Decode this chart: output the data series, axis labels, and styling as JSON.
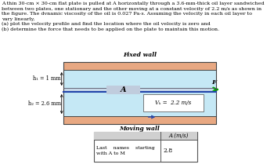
{
  "title_line1": "A thin 30-cm × 30-cm flat plate is pulled at A horizontally through a 3.6-mm-thick oil layer sandwiched",
  "title_line2": "between two plates, one stationary and the other moving at a constant velocity of 2.2 m/s as shown in",
  "title_line3": "the figure. The dvnamic viscosity of the oil is 0.027 Pa·s. Assuming the velocity in each oil layer to",
  "title_line4": "vary linearly,",
  "title_line5": "(a) plot the velocity profile and find the location where the oil velocity is zero and",
  "title_line6": "(b) determine the force that needs to be applied on the plate to maintain this motion.",
  "fixed_wall_label": "Fixed wall",
  "moving_wall_label": "Moving wall",
  "h1_label": "h₁ = 1 mm",
  "h2_label": "h₂ = 2.6 mm",
  "A_label": "A",
  "F_label": "F",
  "Vw_label": "Vₖ =  2.2 m/s",
  "table_col_header": "A (m/s)",
  "table_row_label": "Last    names    starting\nwith A to M",
  "table_value": "2.8",
  "bg_color": "#ffffff",
  "wall_color": "#e8a882",
  "oil_color": "#c5e8f5",
  "arrow_color": "#00aa00",
  "plate_color": "#2244aa",
  "plate_bg_color": "#c8d8e8",
  "dim_line_color": "#222222",
  "border_color": "#444444",
  "table_header_bg": "#d0d0d0"
}
